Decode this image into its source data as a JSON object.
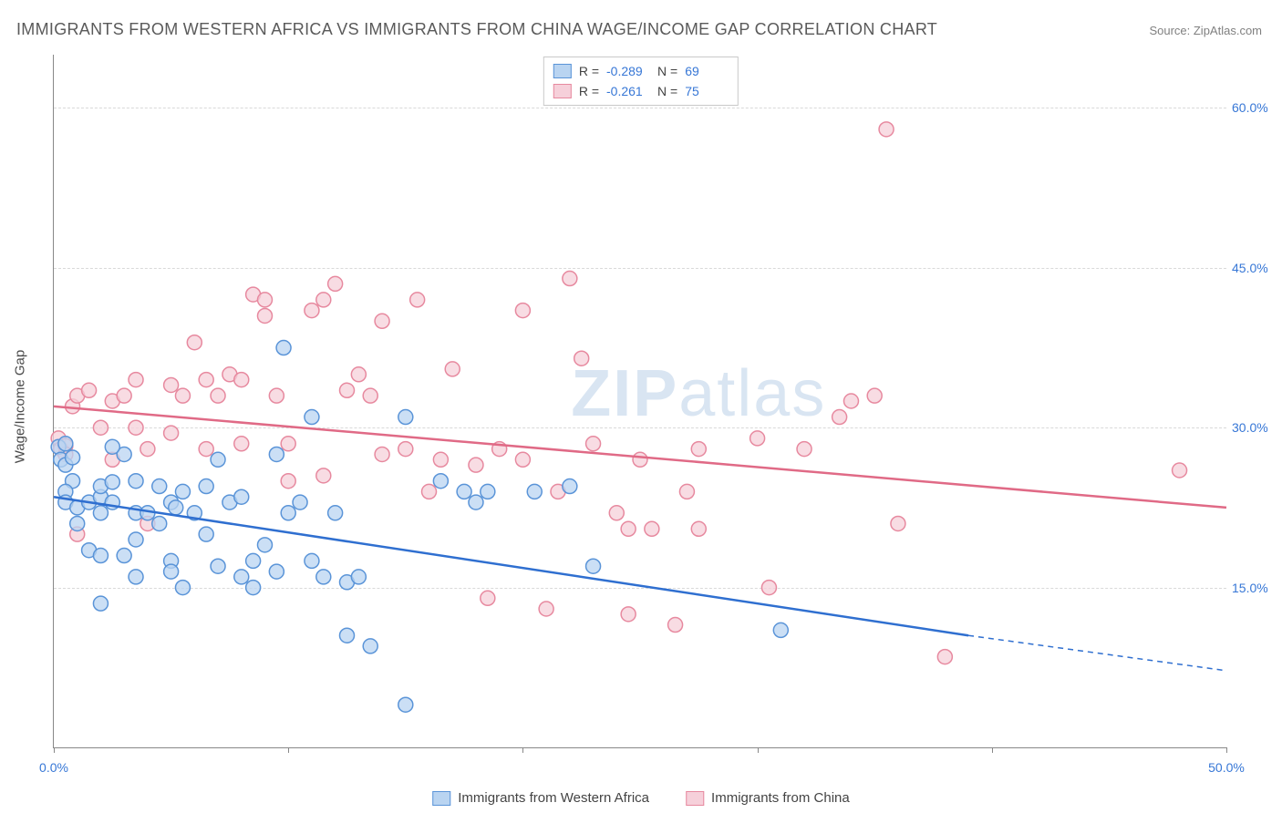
{
  "title": "IMMIGRANTS FROM WESTERN AFRICA VS IMMIGRANTS FROM CHINA WAGE/INCOME GAP CORRELATION CHART",
  "source": "Source: ZipAtlas.com",
  "y_axis_title": "Wage/Income Gap",
  "watermark": {
    "part1": "ZIP",
    "part2": "atlas"
  },
  "chart": {
    "type": "scatter-with-trend",
    "background_color": "#ffffff",
    "grid_color": "#d9d9d9",
    "axis_color": "#888888",
    "xlim": [
      0,
      50
    ],
    "ylim": [
      0,
      65
    ],
    "x_ticks": [
      0,
      10,
      20,
      30,
      40,
      50
    ],
    "x_tick_labels": {
      "0": "0.0%",
      "50": "50.0%"
    },
    "y_ticks": [
      15,
      30,
      45,
      60
    ],
    "y_tick_labels": {
      "15": "15.0%",
      "30": "30.0%",
      "45": "45.0%",
      "60": "60.0%"
    },
    "marker_radius": 8,
    "marker_stroke_width": 1.5,
    "trend_line_width": 2.5,
    "series": [
      {
        "key": "western_africa",
        "label": "Immigrants from Western Africa",
        "fill": "#b9d4f1",
        "stroke": "#5a94d8",
        "line_color": "#2f6fd0",
        "stats": {
          "R": "-0.289",
          "N": "69"
        },
        "trend": {
          "x0": 0,
          "y0": 23.5,
          "x1": 39,
          "y1": 10.5,
          "dash_x1": 50,
          "dash_y1": 7.2
        },
        "points": [
          [
            0.2,
            28.2
          ],
          [
            0.3,
            27.0
          ],
          [
            0.5,
            26.5
          ],
          [
            0.5,
            28.5
          ],
          [
            0.8,
            27.2
          ],
          [
            0.8,
            25.0
          ],
          [
            0.5,
            24.0
          ],
          [
            0.5,
            23.0
          ],
          [
            1.0,
            22.5
          ],
          [
            1.5,
            18.5
          ],
          [
            1.0,
            21.0
          ],
          [
            1.5,
            23.0
          ],
          [
            2.0,
            22.0
          ],
          [
            2.0,
            23.5
          ],
          [
            2.5,
            23.0
          ],
          [
            2.0,
            24.5
          ],
          [
            2.5,
            24.9
          ],
          [
            3.0,
            27.5
          ],
          [
            2.5,
            28.2
          ],
          [
            3.5,
            25.0
          ],
          [
            3.5,
            22.0
          ],
          [
            3.5,
            19.5
          ],
          [
            3.0,
            18.0
          ],
          [
            3.5,
            16.0
          ],
          [
            2.0,
            18.0
          ],
          [
            2.0,
            13.5
          ],
          [
            4.0,
            22.0
          ],
          [
            4.5,
            24.5
          ],
          [
            4.5,
            21.0
          ],
          [
            5.0,
            23.0
          ],
          [
            5.2,
            22.5
          ],
          [
            5.5,
            24.0
          ],
          [
            5.0,
            17.5
          ],
          [
            5.0,
            16.5
          ],
          [
            5.5,
            15.0
          ],
          [
            6.0,
            22.0
          ],
          [
            6.5,
            24.5
          ],
          [
            6.5,
            20.0
          ],
          [
            7.0,
            27.0
          ],
          [
            7.0,
            17.0
          ],
          [
            7.5,
            23.0
          ],
          [
            8.0,
            23.5
          ],
          [
            8.0,
            16.0
          ],
          [
            8.5,
            17.5
          ],
          [
            9.0,
            19.0
          ],
          [
            8.5,
            15.0
          ],
          [
            9.5,
            16.5
          ],
          [
            9.5,
            27.5
          ],
          [
            9.8,
            37.5
          ],
          [
            10.0,
            22.0
          ],
          [
            10.5,
            23.0
          ],
          [
            11.0,
            31.0
          ],
          [
            11.0,
            17.5
          ],
          [
            11.5,
            16.0
          ],
          [
            12.0,
            22.0
          ],
          [
            12.5,
            15.5
          ],
          [
            12.5,
            10.5
          ],
          [
            13.5,
            9.5
          ],
          [
            13.0,
            16.0
          ],
          [
            15.0,
            4.0
          ],
          [
            15.0,
            31.0
          ],
          [
            16.5,
            25.0
          ],
          [
            17.5,
            24.0
          ],
          [
            18.0,
            23.0
          ],
          [
            18.5,
            24.0
          ],
          [
            20.5,
            24.0
          ],
          [
            22.0,
            24.5
          ],
          [
            23.0,
            17.0
          ],
          [
            31.0,
            11.0
          ]
        ]
      },
      {
        "key": "china",
        "label": "Immigrants from China",
        "fill": "#f6d0da",
        "stroke": "#e7899f",
        "line_color": "#e06a86",
        "stats": {
          "R": "-0.261",
          "N": "75"
        },
        "trend": {
          "x0": 0,
          "y0": 32.0,
          "x1": 50,
          "y1": 22.5
        },
        "points": [
          [
            0.2,
            29.0
          ],
          [
            0.3,
            28.0
          ],
          [
            0.5,
            28.3
          ],
          [
            0.5,
            27.5
          ],
          [
            0.8,
            32.0
          ],
          [
            1.0,
            33.0
          ],
          [
            1.5,
            33.5
          ],
          [
            1.0,
            20.0
          ],
          [
            2.0,
            30.0
          ],
          [
            2.5,
            32.5
          ],
          [
            2.5,
            27.0
          ],
          [
            3.0,
            33.0
          ],
          [
            3.5,
            34.5
          ],
          [
            3.5,
            30.0
          ],
          [
            4.0,
            28.0
          ],
          [
            4.0,
            21.0
          ],
          [
            5.0,
            34.0
          ],
          [
            5.0,
            29.5
          ],
          [
            5.5,
            33.0
          ],
          [
            6.0,
            38.0
          ],
          [
            6.5,
            34.5
          ],
          [
            6.5,
            28.0
          ],
          [
            7.0,
            33.0
          ],
          [
            7.5,
            35.0
          ],
          [
            8.0,
            34.5
          ],
          [
            8.0,
            28.5
          ],
          [
            8.5,
            42.5
          ],
          [
            9.0,
            42.0
          ],
          [
            9.0,
            40.5
          ],
          [
            9.5,
            33.0
          ],
          [
            10.0,
            28.5
          ],
          [
            10.0,
            25.0
          ],
          [
            11.0,
            41.0
          ],
          [
            11.5,
            42.0
          ],
          [
            11.5,
            25.5
          ],
          [
            12.0,
            43.5
          ],
          [
            12.5,
            33.5
          ],
          [
            13.0,
            35.0
          ],
          [
            13.5,
            33.0
          ],
          [
            14.0,
            40.0
          ],
          [
            14.0,
            27.5
          ],
          [
            15.0,
            28.0
          ],
          [
            15.5,
            42.0
          ],
          [
            16.0,
            24.0
          ],
          [
            16.5,
            27.0
          ],
          [
            17.0,
            35.5
          ],
          [
            18.0,
            26.5
          ],
          [
            18.5,
            14.0
          ],
          [
            19.0,
            28.0
          ],
          [
            20.0,
            41.0
          ],
          [
            20.0,
            27.0
          ],
          [
            21.0,
            13.0
          ],
          [
            21.5,
            24.0
          ],
          [
            22.0,
            44.0
          ],
          [
            22.5,
            36.5
          ],
          [
            23.0,
            28.5
          ],
          [
            24.0,
            22.0
          ],
          [
            24.5,
            20.5
          ],
          [
            24.5,
            12.5
          ],
          [
            25.0,
            27.0
          ],
          [
            25.5,
            20.5
          ],
          [
            26.5,
            11.5
          ],
          [
            27.0,
            24.0
          ],
          [
            27.5,
            20.5
          ],
          [
            27.5,
            28.0
          ],
          [
            30.0,
            29.0
          ],
          [
            32.0,
            28.0
          ],
          [
            33.5,
            31.0
          ],
          [
            34.0,
            32.5
          ],
          [
            35.0,
            33.0
          ],
          [
            35.5,
            58.0
          ],
          [
            36.0,
            21.0
          ],
          [
            38.0,
            8.5
          ],
          [
            48.0,
            26.0
          ],
          [
            30.5,
            15.0
          ]
        ]
      }
    ]
  },
  "legend_stats_labels": {
    "R": "R =",
    "N": "N ="
  }
}
